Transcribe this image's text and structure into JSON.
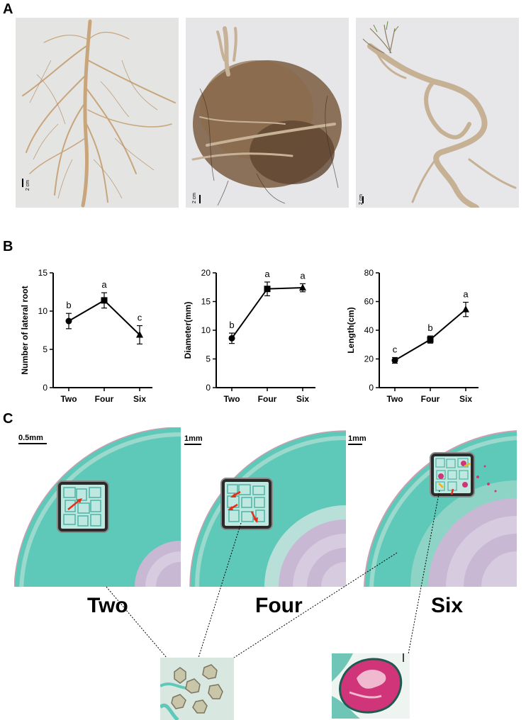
{
  "panels": {
    "A": {
      "letter": "A",
      "scale_bars": [
        "2 cm",
        "2 cm",
        "2 cm"
      ]
    },
    "B": {
      "letter": "B"
    },
    "C": {
      "letter": "C",
      "scale_labels": [
        "0.5mm",
        "1mm",
        "1mm"
      ],
      "stage_labels": [
        "Two",
        "Four",
        "Six"
      ]
    }
  },
  "colors": {
    "tissue": "#5ec9b8",
    "tissue_light": "#9ad9cc",
    "xylem": "#c9b8d3",
    "root_light": "#c9a57c",
    "root_dark": "#6a5138",
    "crystal_pink": "#d0357a",
    "arrow_red": "#e3301b",
    "arrow_yellow": "#f0b21a"
  },
  "chart_data": [
    {
      "type": "line",
      "categories": [
        "Two",
        "Four",
        "Six"
      ],
      "values": [
        8.7,
        11.4,
        6.9
      ],
      "errors": [
        1.0,
        1.0,
        1.2
      ],
      "letters": [
        "b",
        "a",
        "c"
      ],
      "markers": [
        "circle",
        "square",
        "triangle"
      ],
      "ylabel": "Number of lateral root",
      "ylim": [
        0,
        15
      ],
      "yticks": [
        0,
        5,
        10,
        15
      ]
    },
    {
      "type": "line",
      "categories": [
        "Two",
        "Four",
        "Six"
      ],
      "values": [
        8.6,
        17.2,
        17.4
      ],
      "errors": [
        0.9,
        1.2,
        0.7
      ],
      "letters": [
        "b",
        "a",
        "a"
      ],
      "markers": [
        "circle",
        "square",
        "triangle"
      ],
      "ylabel": "Diameter(mm)",
      "ylim": [
        0,
        20
      ],
      "yticks": [
        0,
        5,
        10,
        15,
        20
      ]
    },
    {
      "type": "line",
      "categories": [
        "Two",
        "Four",
        "Six"
      ],
      "values": [
        19.0,
        33.5,
        54.5
      ],
      "errors": [
        2.0,
        2.5,
        5.0
      ],
      "letters": [
        "c",
        "b",
        "a"
      ],
      "markers": [
        "circle",
        "square",
        "triangle"
      ],
      "ylabel": "Length(cm)",
      "ylim": [
        0,
        80
      ],
      "yticks": [
        0,
        20,
        40,
        60,
        80
      ]
    }
  ]
}
